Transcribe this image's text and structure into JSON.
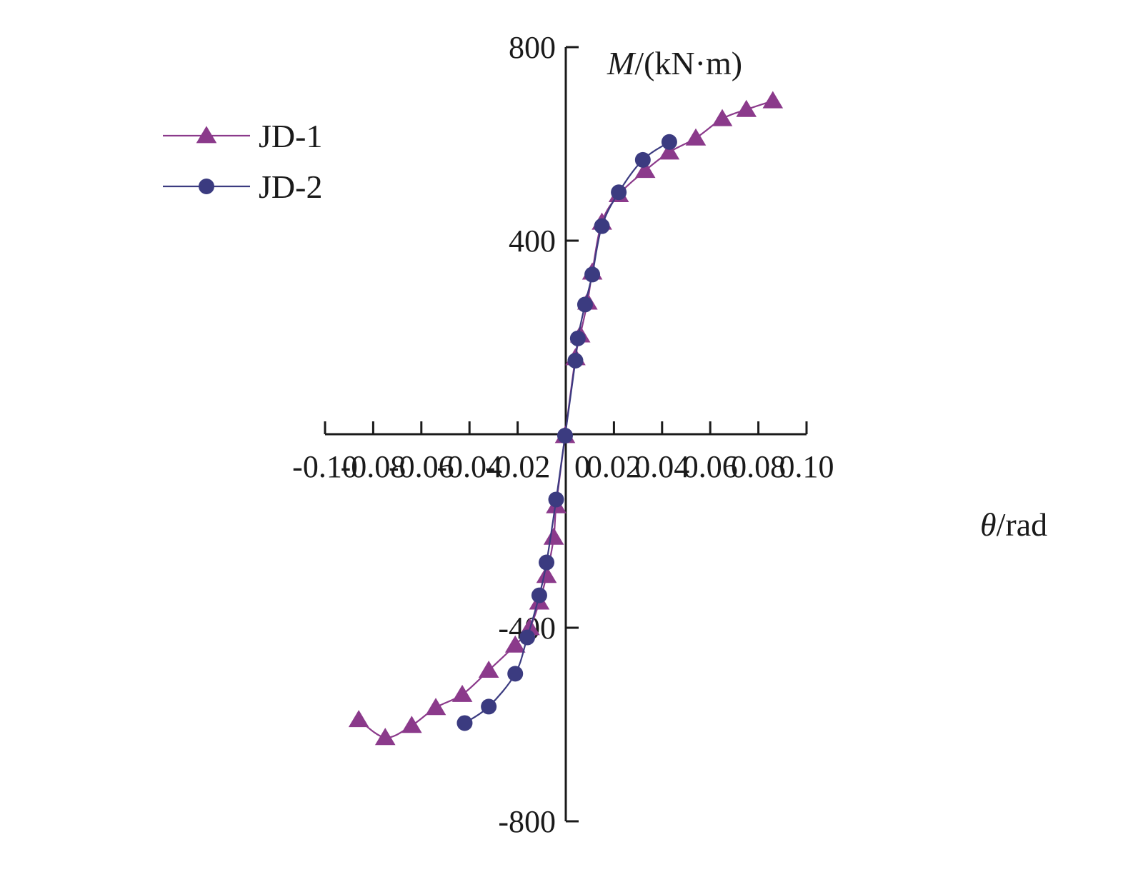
{
  "chart_data": {
    "type": "line",
    "title": "",
    "xlabel_symbol": "θ",
    "xlabel_unit": "/rad",
    "ylabel_symbol": "M",
    "ylabel_unit": "/(kN·m)",
    "xlim": [
      -0.1,
      0.1
    ],
    "ylim": [
      -800,
      800
    ],
    "x_ticks": [
      -0.1,
      -0.08,
      -0.06,
      -0.04,
      -0.02,
      0,
      0.02,
      0.04,
      0.06,
      0.08,
      0.1
    ],
    "x_tick_labels": [
      "-0.10",
      "-0.08",
      "-0.06",
      "-0.04",
      "-0.02",
      "0",
      "0.02",
      "0.04",
      "0.06",
      "0.08",
      "0.10"
    ],
    "y_ticks": [
      -800,
      -400,
      400,
      800
    ],
    "y_tick_labels": [
      "-800",
      "-400",
      "400",
      "800"
    ],
    "grid": false,
    "legend_position": "top-left",
    "series": [
      {
        "name": "JD-1",
        "color": "#8B3A8B",
        "marker": "triangle",
        "x": [
          -0.086,
          -0.075,
          -0.064,
          -0.054,
          -0.043,
          -0.032,
          -0.021,
          -0.015,
          -0.011,
          -0.008,
          -0.005,
          -0.004,
          -0.0003,
          0.004,
          0.006,
          0.009,
          0.011,
          0.015,
          0.022,
          0.033,
          0.043,
          0.054,
          0.065,
          0.075,
          0.086
        ],
        "y": [
          -590,
          -627,
          -602,
          -565,
          -538,
          -488,
          -436,
          -400,
          -347,
          -292,
          -213,
          -148,
          -3,
          158,
          205,
          273,
          335,
          438,
          495,
          545,
          583,
          612,
          652,
          671,
          689
        ]
      },
      {
        "name": "JD-2",
        "color": "#3B3B80",
        "marker": "circle",
        "x": [
          -0.042,
          -0.032,
          -0.021,
          -0.016,
          -0.011,
          -0.008,
          -0.004,
          -0.0003,
          0.004,
          0.005,
          0.008,
          0.011,
          0.015,
          0.022,
          0.032,
          0.043
        ],
        "y": [
          -597,
          -563,
          -495,
          -420,
          -333,
          -265,
          -135,
          -3,
          152,
          198,
          268,
          330,
          430,
          500,
          567,
          604
        ]
      }
    ]
  }
}
